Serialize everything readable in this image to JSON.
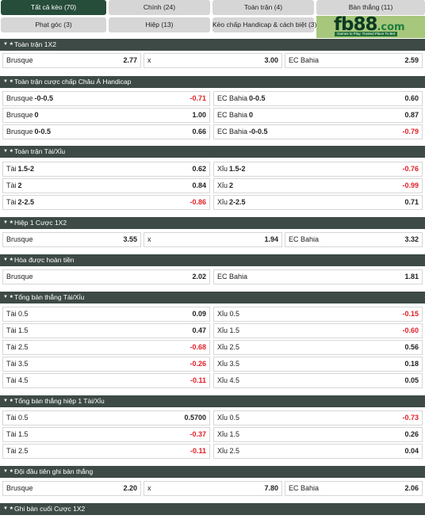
{
  "tabs": [
    {
      "label": "Tất cả kèo (70)",
      "active": true
    },
    {
      "label": "Chính (24)",
      "active": false
    },
    {
      "label": "Toàn trận (4)",
      "active": false
    },
    {
      "label": "Bàn thắng (11)",
      "active": false
    },
    {
      "label": "Phạt góc (3)",
      "active": false
    },
    {
      "label": "Hiệp (13)",
      "active": false
    },
    {
      "label": "Kèo chấp Handicap & cách biệt (3)",
      "active": false
    }
  ],
  "banner": {
    "logo_main": "fb88",
    "logo_suffix": ".com",
    "tagline": "Games to Play. Trusted Place To Bet"
  },
  "sections": [
    {
      "title": "Toàn trận 1X2",
      "rows": [
        {
          "cells": [
            {
              "label": "Brusque",
              "value": "2.77"
            },
            {
              "label": "x",
              "value": "3.00"
            },
            {
              "label": "EC Bahia",
              "value": "2.59"
            }
          ]
        }
      ]
    },
    {
      "title": "Toàn trận cược chấp Châu Á Handicap",
      "rows": [
        {
          "cells": [
            {
              "label": "Brusque",
              "hc": "-0-0.5",
              "value": "-0.71"
            },
            {
              "label": "EC Bahia",
              "hc": "0-0.5",
              "value": "0.60"
            }
          ]
        },
        {
          "cells": [
            {
              "label": "Brusque",
              "hc": "0",
              "value": "1.00"
            },
            {
              "label": "EC Bahia",
              "hc": "0",
              "value": "0.87"
            }
          ]
        },
        {
          "cells": [
            {
              "label": "Brusque",
              "hc": "0-0.5",
              "value": "0.66"
            },
            {
              "label": "EC Bahia",
              "hc": "-0-0.5",
              "value": "-0.79"
            }
          ]
        }
      ]
    },
    {
      "title": "Toàn trận Tài/Xỉu",
      "rows": [
        {
          "cells": [
            {
              "label": "Tài",
              "hc": "1.5-2",
              "value": "0.62"
            },
            {
              "label": "Xỉu",
              "hc": "1.5-2",
              "value": "-0.76"
            }
          ]
        },
        {
          "cells": [
            {
              "label": "Tài",
              "hc": "2",
              "value": "0.84"
            },
            {
              "label": "Xỉu",
              "hc": "2",
              "value": "-0.99"
            }
          ]
        },
        {
          "cells": [
            {
              "label": "Tài",
              "hc": "2-2.5",
              "value": "-0.86"
            },
            {
              "label": "Xỉu",
              "hc": "2-2.5",
              "value": "0.71"
            }
          ]
        }
      ]
    },
    {
      "title": "Hiệp 1 Cược 1X2",
      "rows": [
        {
          "cells": [
            {
              "label": "Brusque",
              "value": "3.55"
            },
            {
              "label": "x",
              "value": "1.94"
            },
            {
              "label": "EC Bahia",
              "value": "3.32"
            }
          ]
        }
      ]
    },
    {
      "title": "Hòa được hoàn tiền",
      "rows": [
        {
          "cells": [
            {
              "label": "Brusque",
              "value": "2.02"
            },
            {
              "label": "EC Bahia",
              "value": "1.81"
            }
          ]
        }
      ]
    },
    {
      "title": "Tổng bàn thắng Tài/Xỉu",
      "rows": [
        {
          "cells": [
            {
              "label": "Tài 0.5",
              "value": "0.09"
            },
            {
              "label": "Xỉu 0.5",
              "value": "-0.15"
            }
          ]
        },
        {
          "cells": [
            {
              "label": "Tài 1.5",
              "value": "0.47"
            },
            {
              "label": "Xỉu 1.5",
              "value": "-0.60"
            }
          ]
        },
        {
          "cells": [
            {
              "label": "Tài 2.5",
              "value": "-0.68"
            },
            {
              "label": "Xỉu 2.5",
              "value": "0.56"
            }
          ]
        },
        {
          "cells": [
            {
              "label": "Tài 3.5",
              "value": "-0.26"
            },
            {
              "label": "Xỉu 3.5",
              "value": "0.18"
            }
          ]
        },
        {
          "cells": [
            {
              "label": "Tài 4.5",
              "value": "-0.11"
            },
            {
              "label": "Xỉu 4.5",
              "value": "0.05"
            }
          ]
        }
      ]
    },
    {
      "title": "Tổng bàn thắng hiệp 1 Tài/Xỉu",
      "rows": [
        {
          "cells": [
            {
              "label": "Tài 0.5",
              "value": "0.5700"
            },
            {
              "label": "Xỉu 0.5",
              "value": "-0.73"
            }
          ]
        },
        {
          "cells": [
            {
              "label": "Tài 1.5",
              "value": "-0.37"
            },
            {
              "label": "Xỉu 1.5",
              "value": "0.26"
            }
          ]
        },
        {
          "cells": [
            {
              "label": "Tài 2.5",
              "value": "-0.11"
            },
            {
              "label": "Xỉu 2.5",
              "value": "0.04"
            }
          ]
        }
      ]
    },
    {
      "title": "Đội đầu tiên ghi bàn thắng",
      "rows": [
        {
          "cells": [
            {
              "label": "Brusque",
              "value": "2.20"
            },
            {
              "label": "x",
              "value": "7.80"
            },
            {
              "label": "EC Bahia",
              "value": "2.06"
            }
          ]
        }
      ]
    },
    {
      "title": "Ghi bàn cuối Cược 1X2",
      "rows": []
    }
  ],
  "colors": {
    "header_bg": "#3d4a46",
    "active_tab": "#264d3a",
    "tab_bg": "#d6d6d6",
    "negative": "#e21f26",
    "banner_bg": "#a7c77c"
  }
}
